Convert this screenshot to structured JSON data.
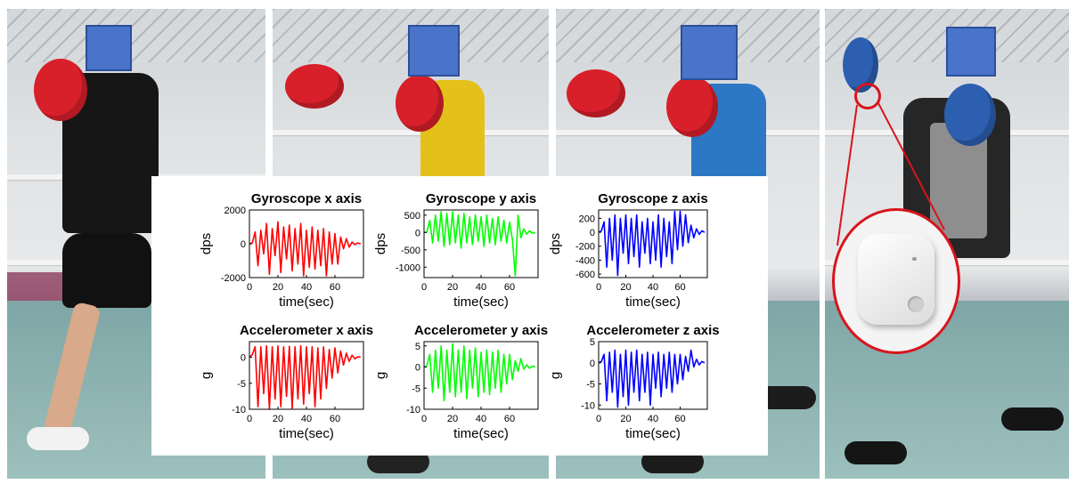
{
  "chart_data": [
    {
      "type": "line",
      "title": "Gyroscope x axis",
      "xlabel": "time(sec)",
      "ylabel": "dps",
      "xlim": [
        0,
        80
      ],
      "ylim": [
        -2000,
        2000
      ],
      "xticks": [
        0,
        20,
        40,
        60
      ],
      "yticks": [
        -2000,
        0,
        2000
      ],
      "xtick_labels": [
        "0",
        "20",
        "40",
        "60"
      ],
      "ytick_labels": [
        "-2000",
        "0",
        "2000"
      ],
      "color": "#ff0000",
      "series": [
        {
          "x": [
            0,
            2,
            4,
            6,
            8,
            10,
            12,
            14,
            16,
            18,
            20,
            22,
            24,
            26,
            28,
            30,
            32,
            34,
            36,
            38,
            40,
            42,
            44,
            46,
            48,
            50,
            52,
            54,
            56,
            58,
            60,
            62,
            64,
            66,
            68,
            70,
            72,
            74,
            76,
            78
          ],
          "y": [
            0,
            50,
            700,
            -1300,
            800,
            -600,
            1200,
            -1800,
            900,
            -700,
            1300,
            -1700,
            1000,
            -900,
            1100,
            -1600,
            900,
            -1200,
            1200,
            -1900,
            800,
            -1400,
            1000,
            -1500,
            800,
            -1300,
            900,
            -1900,
            700,
            -1200,
            600,
            -1200,
            400,
            -300,
            300,
            -200,
            100,
            -50,
            50,
            0
          ]
        }
      ]
    },
    {
      "type": "line",
      "title": "Gyroscope y axis",
      "xlabel": "time(sec)",
      "ylabel": "dps",
      "xlim": [
        0,
        80
      ],
      "ylim": [
        -1300,
        650
      ],
      "xticks": [
        0,
        20,
        40,
        60
      ],
      "yticks": [
        -1000,
        -500,
        0,
        500
      ],
      "xtick_labels": [
        "0",
        "20",
        "40",
        "60"
      ],
      "ytick_labels": [
        "-1000",
        "-500",
        "0",
        "500"
      ],
      "color": "#00ff00",
      "series": [
        {
          "x": [
            0,
            2,
            4,
            6,
            8,
            10,
            12,
            14,
            16,
            18,
            20,
            22,
            24,
            26,
            28,
            30,
            32,
            34,
            36,
            38,
            40,
            42,
            44,
            46,
            48,
            50,
            52,
            54,
            56,
            58,
            60,
            62,
            64,
            66,
            68,
            70,
            72,
            74,
            76,
            78
          ],
          "y": [
            0,
            20,
            350,
            -300,
            500,
            -250,
            600,
            -400,
            550,
            -350,
            600,
            -300,
            500,
            -450,
            550,
            -300,
            450,
            -350,
            500,
            -250,
            450,
            -400,
            500,
            -300,
            400,
            -350,
            450,
            -250,
            350,
            -300,
            300,
            -200,
            -1250,
            500,
            -150,
            100,
            -50,
            50,
            -20,
            0
          ]
        }
      ]
    },
    {
      "type": "line",
      "title": "Gyroscope z axis",
      "xlabel": "time(sec)",
      "ylabel": "dps",
      "xlim": [
        0,
        80
      ],
      "ylim": [
        -650,
        320
      ],
      "xticks": [
        0,
        20,
        40,
        60
      ],
      "yticks": [
        -600,
        -400,
        -200,
        0,
        200
      ],
      "xtick_labels": [
        "0",
        "20",
        "40",
        "60"
      ],
      "ytick_labels": [
        "-600",
        "-400",
        "-200",
        "0",
        "200"
      ],
      "color": "#0000ff",
      "series": [
        {
          "x": [
            0,
            2,
            4,
            6,
            8,
            10,
            12,
            14,
            16,
            18,
            20,
            22,
            24,
            26,
            28,
            30,
            32,
            34,
            36,
            38,
            40,
            42,
            44,
            46,
            48,
            50,
            52,
            54,
            56,
            58,
            60,
            62,
            64,
            66,
            68,
            70,
            72,
            74,
            76,
            78
          ],
          "y": [
            0,
            20,
            150,
            -500,
            200,
            -400,
            250,
            -620,
            200,
            -300,
            250,
            -450,
            200,
            -350,
            250,
            -500,
            150,
            -300,
            200,
            -450,
            150,
            -400,
            250,
            -500,
            200,
            -350,
            150,
            -450,
            300,
            -250,
            300,
            -200,
            250,
            -150,
            100,
            -80,
            50,
            -30,
            20,
            0
          ]
        }
      ]
    },
    {
      "type": "line",
      "title": "Accelerometer x axis",
      "xlabel": "time(sec)",
      "ylabel": "g",
      "xlim": [
        0,
        80
      ],
      "ylim": [
        -10,
        3
      ],
      "xticks": [
        0,
        20,
        40,
        60
      ],
      "yticks": [
        -10,
        -5,
        0
      ],
      "xtick_labels": [
        "0",
        "20",
        "40",
        "60"
      ],
      "ytick_labels": [
        "-10",
        "-5",
        "0"
      ],
      "color": "#ff0000",
      "series": [
        {
          "x": [
            0,
            2,
            4,
            6,
            8,
            10,
            12,
            14,
            16,
            18,
            20,
            22,
            24,
            26,
            28,
            30,
            32,
            34,
            36,
            38,
            40,
            42,
            44,
            46,
            48,
            50,
            52,
            54,
            56,
            58,
            60,
            62,
            64,
            66,
            68,
            70,
            72,
            74,
            76,
            78
          ],
          "y": [
            0,
            0.5,
            2,
            -9.5,
            2,
            -7,
            2.2,
            -10,
            2,
            -8,
            2.2,
            -9.5,
            2,
            -7.5,
            2.1,
            -9.8,
            2,
            -8,
            2.2,
            -9,
            2,
            -7,
            2,
            -9.5,
            1.8,
            -8,
            2,
            -6,
            1.5,
            -4,
            1.8,
            -3,
            1.2,
            -1.5,
            0.8,
            -0.8,
            0.4,
            -0.3,
            0.1,
            0
          ]
        }
      ]
    },
    {
      "type": "line",
      "title": "Accelerometer y axis",
      "xlabel": "time(sec)",
      "ylabel": "g",
      "xlim": [
        0,
        80
      ],
      "ylim": [
        -10,
        6
      ],
      "xticks": [
        0,
        20,
        40,
        60
      ],
      "yticks": [
        -10,
        -5,
        0,
        5
      ],
      "xtick_labels": [
        "0",
        "20",
        "40",
        "60"
      ],
      "ytick_labels": [
        "-10",
        "-5",
        "0",
        "5"
      ],
      "color": "#00ff00",
      "series": [
        {
          "x": [
            0,
            2,
            4,
            6,
            8,
            10,
            12,
            14,
            16,
            18,
            20,
            22,
            24,
            26,
            28,
            30,
            32,
            34,
            36,
            38,
            40,
            42,
            44,
            46,
            48,
            50,
            52,
            54,
            56,
            58,
            60,
            62,
            64,
            66,
            68,
            70,
            72,
            74,
            76,
            78
          ],
          "y": [
            0,
            0.3,
            3,
            -6,
            4,
            -5,
            5,
            -8,
            4,
            -6,
            5.5,
            -7,
            4,
            -6,
            5,
            -7.5,
            4,
            -5,
            4.5,
            -7,
            3.5,
            -6,
            4,
            -6.5,
            3.5,
            -5,
            4,
            -6,
            3,
            -4,
            3,
            -3,
            1.5,
            -1,
            2,
            -0.5,
            0.5,
            -0.3,
            0.2,
            0
          ]
        }
      ]
    },
    {
      "type": "line",
      "title": "Accelerometer z axis",
      "xlabel": "time(sec)",
      "ylabel": "g",
      "xlim": [
        0,
        80
      ],
      "ylim": [
        -11,
        5
      ],
      "xticks": [
        0,
        20,
        40,
        60
      ],
      "yticks": [
        -10,
        -5,
        0,
        5
      ],
      "xtick_labels": [
        "0",
        "20",
        "40",
        "60"
      ],
      "ytick_labels": [
        "-10",
        "-5",
        "0",
        "5"
      ],
      "color": "#0000ff",
      "series": [
        {
          "x": [
            0,
            2,
            4,
            6,
            8,
            10,
            12,
            14,
            16,
            18,
            20,
            22,
            24,
            26,
            28,
            30,
            32,
            34,
            36,
            38,
            40,
            42,
            44,
            46,
            48,
            50,
            52,
            54,
            56,
            58,
            60,
            62,
            64,
            66,
            68,
            70,
            72,
            74,
            76,
            78
          ],
          "y": [
            0,
            0.3,
            2,
            -9,
            2.5,
            -7,
            3,
            -10.5,
            2,
            -8,
            3,
            -10,
            2.5,
            -7,
            3,
            -9,
            2,
            -7,
            2.5,
            -10,
            2,
            -6,
            2.5,
            -8,
            2,
            -6,
            2.5,
            -7,
            2,
            -5,
            2,
            -4,
            1.5,
            -2,
            3,
            -1,
            0.8,
            -0.5,
            0.3,
            0
          ]
        }
      ]
    }
  ]
}
